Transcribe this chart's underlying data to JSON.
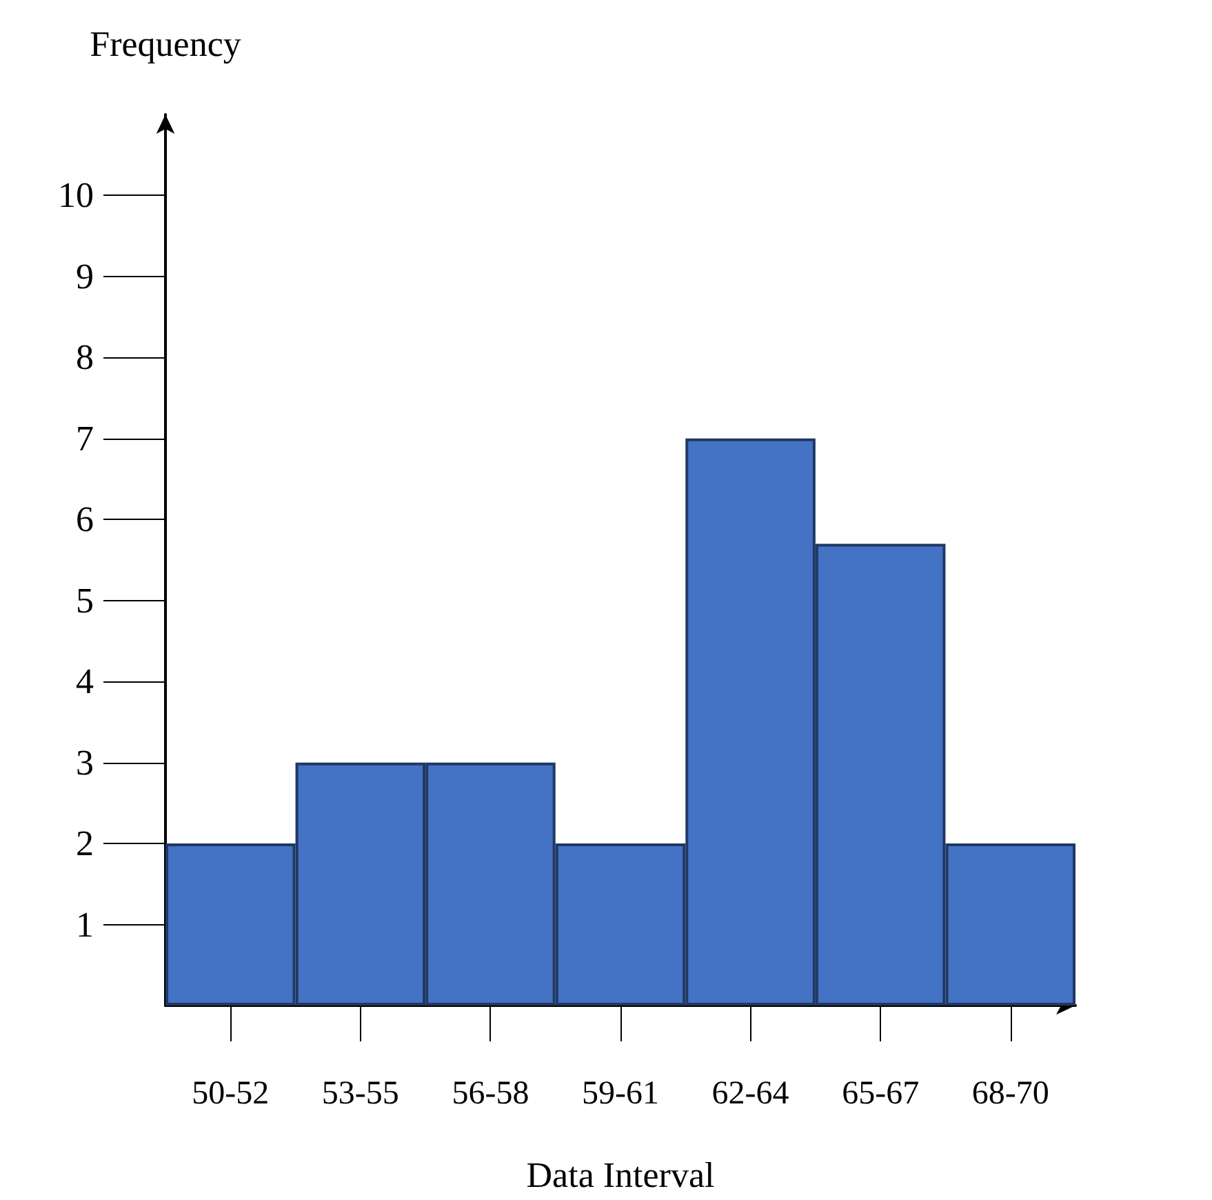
{
  "chart_data": {
    "type": "bar",
    "xlabel": "Data Interval",
    "ylabel": "Frequency",
    "categories": [
      "50-52",
      "53-55",
      "56-58",
      "59-61",
      "62-64",
      "65-67",
      "68-70"
    ],
    "values": [
      2,
      3,
      3,
      2,
      7,
      5.7,
      2
    ],
    "color": "#4472c4",
    "ylim": [
      0,
      11
    ],
    "yticks": [
      1,
      2,
      3,
      4,
      5,
      6,
      7,
      8,
      9,
      10
    ],
    "grid": false
  }
}
